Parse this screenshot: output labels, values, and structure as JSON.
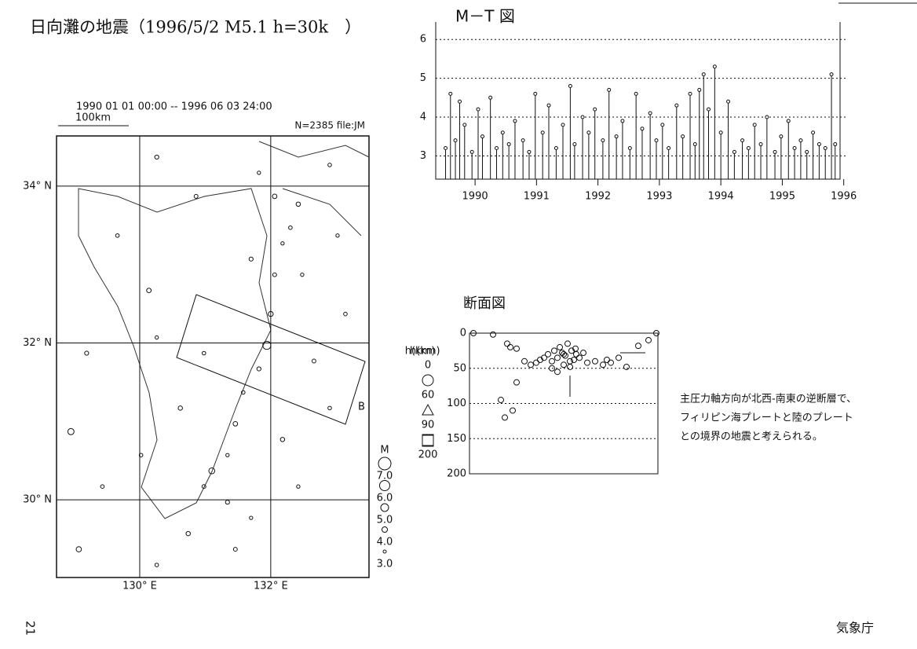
{
  "header": {
    "title": "日向灘の地震（1996/5/2 M5.1 h=30k　）",
    "page": "21",
    "agency": "気象庁"
  },
  "map": {
    "period": "1990 01 01 00:00 -- 1996 06 03 24:00",
    "scale_label": "100km",
    "count": "N=2385 file:JM",
    "lonlim": [
      128.73,
      133.5
    ],
    "latlim": [
      29.01,
      34.64
    ],
    "lat_ticks": [
      {
        "value": 34,
        "label": "34° N"
      },
      {
        "value": 32,
        "label": "32° N"
      },
      {
        "value": 30,
        "label": "30° N"
      }
    ],
    "lon_ticks": [
      {
        "value": 130,
        "label": "130° E"
      },
      {
        "value": 132,
        "label": "132° E"
      }
    ],
    "section_end": "B",
    "depth_legend": {
      "title": "h(km)",
      "items": [
        "0",
        "60",
        "90",
        "200"
      ]
    },
    "mag_legend": {
      "title": "M",
      "items": [
        {
          "value": 7,
          "label": "7.0"
        },
        {
          "value": 6,
          "label": "6.0"
        },
        {
          "value": 5,
          "label": "5.0"
        },
        {
          "value": 4,
          "label": "4.0"
        },
        {
          "value": 3,
          "label": "3.0"
        }
      ]
    },
    "events": [
      {
        "lon": 132.3,
        "lat": 33.47,
        "m": 3.2
      },
      {
        "lon": 132.42,
        "lat": 33.77,
        "m": 3.5
      },
      {
        "lon": 132.18,
        "lat": 33.27,
        "m": 3.1
      },
      {
        "lon": 132.06,
        "lat": 32.87,
        "m": 3.3
      },
      {
        "lon": 132.0,
        "lat": 32.37,
        "m": 3.8
      },
      {
        "lon": 131.94,
        "lat": 31.97,
        "m": 5.1
      },
      {
        "lon": 131.82,
        "lat": 31.67,
        "m": 3.4
      },
      {
        "lon": 131.58,
        "lat": 31.37,
        "m": 3.2
      },
      {
        "lon": 131.46,
        "lat": 30.97,
        "m": 3.6
      },
      {
        "lon": 131.34,
        "lat": 30.57,
        "m": 3.1
      },
      {
        "lon": 131.1,
        "lat": 30.37,
        "m": 4.2
      },
      {
        "lon": 130.98,
        "lat": 30.17,
        "m": 3.3
      },
      {
        "lon": 130.74,
        "lat": 29.57,
        "m": 3.5
      },
      {
        "lon": 130.26,
        "lat": 29.17,
        "m": 3.2
      },
      {
        "lon": 129.07,
        "lat": 29.37,
        "m": 3.9
      },
      {
        "lon": 129.19,
        "lat": 31.87,
        "m": 3.4
      },
      {
        "lon": 130.14,
        "lat": 32.67,
        "m": 3.6
      },
      {
        "lon": 130.26,
        "lat": 32.07,
        "m": 3.1
      },
      {
        "lon": 130.98,
        "lat": 31.87,
        "m": 3.2
      },
      {
        "lon": 132.66,
        "lat": 31.77,
        "m": 3.3
      },
      {
        "lon": 133.02,
        "lat": 33.37,
        "m": 3.1
      },
      {
        "lon": 129.66,
        "lat": 33.37,
        "m": 3.2
      },
      {
        "lon": 131.34,
        "lat": 29.97,
        "m": 3.4
      },
      {
        "lon": 131.7,
        "lat": 29.77,
        "m": 3.1
      },
      {
        "lon": 132.18,
        "lat": 30.77,
        "m": 3.5
      },
      {
        "lon": 132.9,
        "lat": 31.17,
        "m": 3.2
      },
      {
        "lon": 130.86,
        "lat": 33.87,
        "m": 3.3
      },
      {
        "lon": 131.82,
        "lat": 34.17,
        "m": 3.1
      },
      {
        "lon": 132.9,
        "lat": 34.27,
        "m": 3.2
      },
      {
        "lon": 130.26,
        "lat": 34.37,
        "m": 3.4
      },
      {
        "lon": 128.95,
        "lat": 30.87,
        "m": 4.3
      },
      {
        "lon": 129.43,
        "lat": 30.17,
        "m": 3.2
      },
      {
        "lon": 132.42,
        "lat": 30.17,
        "m": 3.1
      },
      {
        "lon": 131.46,
        "lat": 29.37,
        "m": 3.3
      },
      {
        "lon": 130.02,
        "lat": 30.57,
        "m": 3.2
      },
      {
        "lon": 130.62,
        "lat": 31.17,
        "m": 3.5
      },
      {
        "lon": 133.14,
        "lat": 32.37,
        "m": 3.2
      },
      {
        "lon": 131.7,
        "lat": 33.07,
        "m": 3.4
      },
      {
        "lon": 132.06,
        "lat": 33.87,
        "m": 3.6
      },
      {
        "lon": 132.48,
        "lat": 32.87,
        "m": 3.1
      }
    ]
  },
  "mt_chart": {
    "title": "M－T 図",
    "xlim": [
      1989.86,
      1996.44
    ],
    "ylim": [
      2.4,
      6.45
    ],
    "xticks": [
      {
        "value": 1990.5,
        "label": "1990"
      },
      {
        "value": 1991.5,
        "label": "1991"
      },
      {
        "value": 1992.5,
        "label": "1992"
      },
      {
        "value": 1993.5,
        "label": "1993"
      },
      {
        "value": 1994.5,
        "label": "1994"
      },
      {
        "value": 1995.5,
        "label": "1995"
      },
      {
        "value": 1996.5,
        "label": "1996"
      }
    ],
    "yticks": [
      3,
      4,
      5,
      6
    ],
    "x": [
      1990.02,
      1990.1,
      1990.18,
      1990.25,
      1990.33,
      1990.45,
      1990.55,
      1990.62,
      1990.75,
      1990.85,
      1990.95,
      1991.05,
      1991.15,
      1991.28,
      1991.38,
      1991.48,
      1991.6,
      1991.7,
      1991.82,
      1991.93,
      1992.05,
      1992.12,
      1992.25,
      1992.35,
      1992.45,
      1992.58,
      1992.68,
      1992.8,
      1992.9,
      1993.02,
      1993.12,
      1993.22,
      1993.35,
      1993.45,
      1993.55,
      1993.65,
      1993.78,
      1993.88,
      1994.0,
      1994.08,
      1994.15,
      1994.22,
      1994.3,
      1994.4,
      1994.5,
      1994.62,
      1994.72,
      1994.85,
      1994.95,
      1995.05,
      1995.15,
      1995.25,
      1995.38,
      1995.48,
      1995.6,
      1995.7,
      1995.8,
      1995.9,
      1996.0,
      1996.1,
      1996.2,
      1996.3,
      1996.36
    ],
    "values": [
      3.2,
      4.6,
      3.4,
      4.4,
      3.8,
      3.1,
      4.2,
      3.5,
      4.5,
      3.2,
      3.6,
      3.3,
      3.9,
      3.4,
      3.1,
      4.6,
      3.6,
      4.3,
      3.2,
      3.8,
      4.8,
      3.3,
      4.0,
      3.6,
      4.2,
      3.4,
      4.7,
      3.5,
      3.9,
      3.2,
      4.6,
      3.7,
      4.1,
      3.4,
      3.8,
      3.2,
      4.3,
      3.5,
      4.6,
      3.3,
      4.7,
      5.1,
      4.2,
      5.3,
      3.6,
      4.4,
      3.1,
      3.4,
      3.2,
      3.8,
      3.3,
      4.0,
      3.1,
      3.5,
      3.9,
      3.2,
      3.4,
      3.1,
      3.6,
      3.3,
      3.2,
      5.1,
      3.3
    ]
  },
  "section": {
    "title": "断面図",
    "ylabel": "h(km)",
    "xlim": [
      0,
      240
    ],
    "ylim": [
      0,
      200
    ],
    "yticks": [
      0,
      50,
      100,
      150,
      200
    ],
    "x": [
      5,
      30,
      48,
      52,
      60,
      70,
      78,
      85,
      90,
      95,
      100,
      105,
      108,
      112,
      115,
      118,
      120,
      122,
      125,
      128,
      130,
      133,
      136,
      140,
      145,
      150,
      160,
      170,
      175,
      180,
      190,
      200,
      215,
      228,
      238,
      40,
      45,
      55,
      60,
      105,
      112,
      120,
      128,
      135
    ],
    "depth": [
      0,
      2,
      15,
      20,
      22,
      40,
      45,
      42,
      38,
      35,
      30,
      40,
      25,
      35,
      20,
      28,
      45,
      32,
      15,
      40,
      25,
      38,
      30,
      35,
      28,
      42,
      40,
      45,
      38,
      42,
      35,
      48,
      18,
      10,
      0,
      95,
      120,
      110,
      70,
      50,
      55,
      30,
      48,
      22
    ]
  },
  "note": [
    "主圧力軸方向が北西-南東の逆断層で、",
    "フィリピン海プレートと陸のプレート",
    "との境界の地震と考えられる。"
  ]
}
